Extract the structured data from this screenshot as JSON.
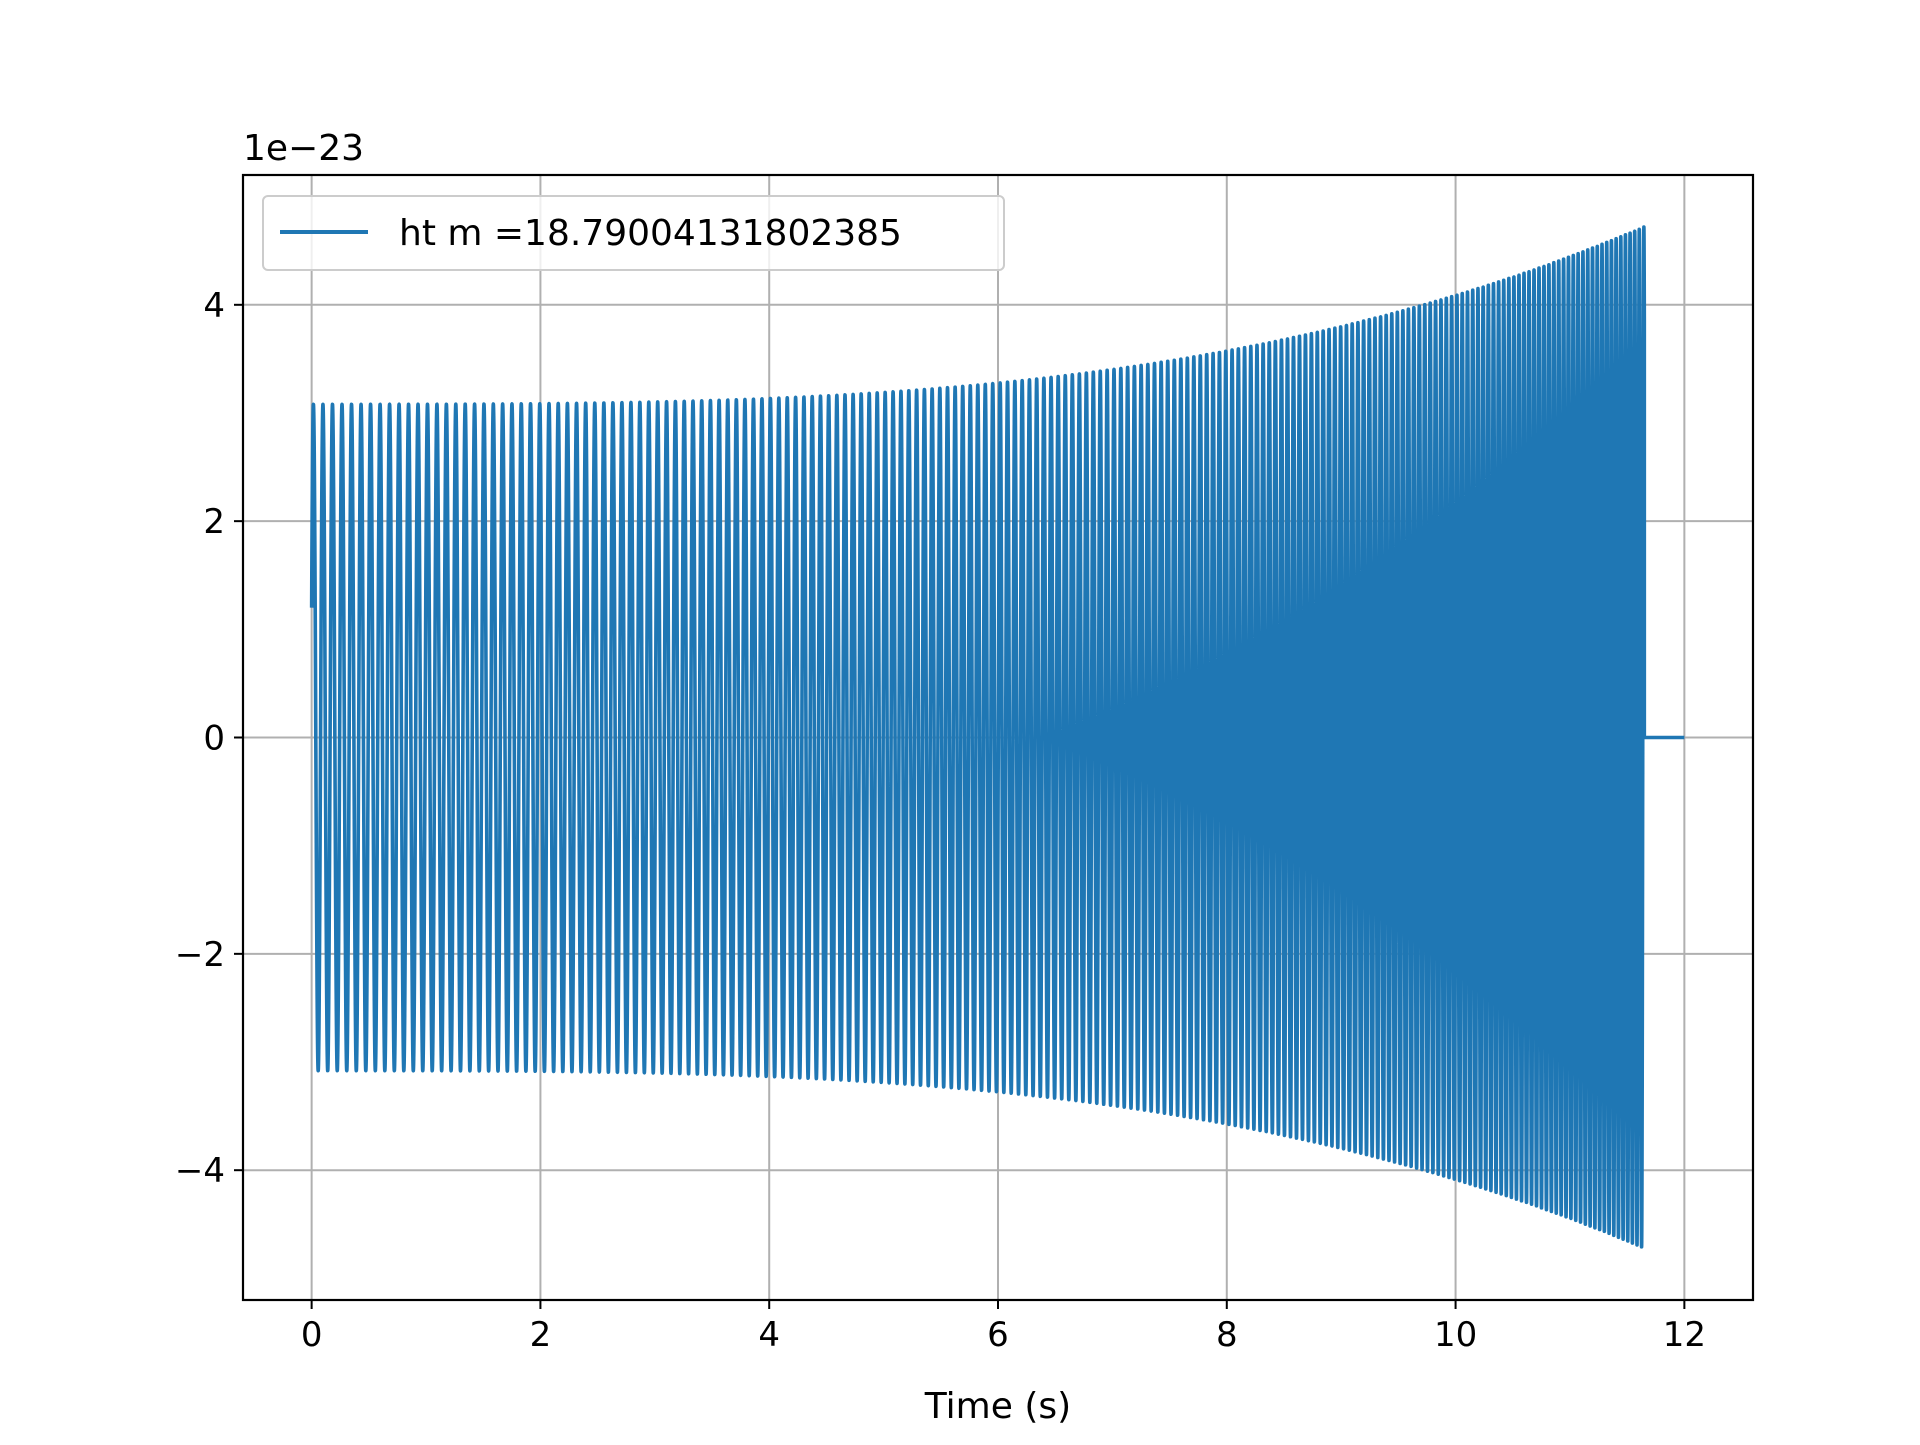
{
  "chart_data": {
    "type": "line",
    "title": "",
    "xlabel": "Time (s)",
    "ylabel": "",
    "y_offset_label": "1e−23",
    "xlim": [
      -0.6,
      12.6
    ],
    "ylim": [
      -5.2,
      5.2
    ],
    "xticks": [
      0,
      2,
      4,
      6,
      8,
      10,
      12
    ],
    "xtick_labels": [
      "0",
      "2",
      "4",
      "6",
      "8",
      "10",
      "12"
    ],
    "yticks": [
      -4,
      -2,
      0,
      2,
      4
    ],
    "ytick_labels": [
      "−4",
      "−2",
      "0",
      "2",
      "4"
    ],
    "grid": true,
    "legend_position": "top-left",
    "series": [
      {
        "name": "ht m =18.79004131802385",
        "color": "#1f77b4",
        "waveform": {
          "t_start": 0.0,
          "t_merger": 11.65,
          "t_end": 12.0,
          "start_amplitude": 3.08,
          "peak_amplitude": 4.72,
          "start_frequency_hz": 12.0,
          "end_frequency_hz": 25.0,
          "start_value": 1.2,
          "post_merger_value": 0.0
        }
      }
    ]
  }
}
